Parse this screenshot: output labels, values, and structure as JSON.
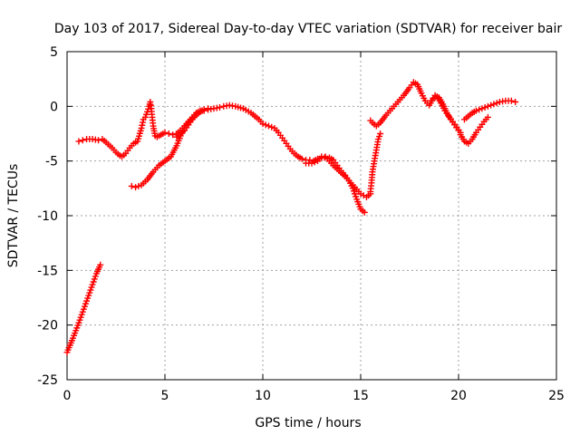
{
  "chart_data": {
    "type": "scatter",
    "title": "Day 103 of 2017, Sidereal Day-to-day VTEC variation (SDTVAR) for receiver bair",
    "xlabel": "GPS time / hours",
    "ylabel": "SDTVAR / TECUs",
    "xlim": [
      0,
      25
    ],
    "ylim": [
      -25,
      5
    ],
    "xticks": [
      "0",
      "5",
      "10",
      "15",
      "20",
      "25"
    ],
    "yticks": [
      "-25",
      "-20",
      "-15",
      "-10",
      "-5",
      "0",
      "5"
    ],
    "grid": true,
    "marker": "plus",
    "colors": {
      "series": "#ff0000",
      "grid": "#a0a0a0",
      "axis": "#000000"
    },
    "series": [
      {
        "segments": [
          {
            "x": [
              0.0,
              0.3,
              0.6,
              0.9,
              1.2,
              1.5,
              1.7
            ],
            "y": [
              -22.5,
              -21.2,
              -19.8,
              -18.3,
              -16.8,
              -15.3,
              -14.5
            ]
          },
          {
            "x": [
              0.6,
              0.8,
              1.0,
              1.3,
              1.6,
              1.8,
              2.0,
              2.3,
              2.5,
              2.7,
              2.8,
              3.0,
              3.2,
              3.4,
              3.6,
              3.8,
              3.9,
              4.0,
              4.1,
              4.2,
              4.25,
              4.3,
              4.4,
              4.5,
              4.6,
              4.8,
              5.0,
              5.2,
              5.4,
              5.6,
              5.8,
              6.0,
              6.2,
              6.4,
              6.6,
              6.8,
              7.0,
              7.2,
              7.5,
              7.8,
              8.0,
              8.3,
              8.6,
              9.0,
              9.4,
              9.8,
              10.0,
              10.3,
              10.6,
              10.8,
              11.0,
              11.2,
              11.4,
              11.6,
              11.8,
              12.0,
              12.2,
              12.4,
              12.6,
              12.8,
              13.0,
              13.2,
              13.4,
              13.6,
              13.8,
              14.0,
              14.2,
              14.4,
              14.6,
              14.8,
              15.0,
              15.2
            ],
            "y": [
              -3.2,
              -3.1,
              -3.0,
              -3.0,
              -3.1,
              -3.0,
              -3.3,
              -3.8,
              -4.2,
              -4.5,
              -4.6,
              -4.3,
              -3.8,
              -3.4,
              -3.2,
              -2.0,
              -1.2,
              -1.0,
              -0.5,
              0.0,
              0.4,
              -0.2,
              -1.8,
              -2.7,
              -2.8,
              -2.6,
              -2.4,
              -2.5,
              -2.6,
              -2.5,
              -2.2,
              -1.8,
              -1.4,
              -1.0,
              -0.6,
              -0.4,
              -0.4,
              -0.3,
              -0.2,
              -0.1,
              0.0,
              0.1,
              0.0,
              -0.2,
              -0.6,
              -1.2,
              -1.6,
              -1.8,
              -2.0,
              -2.4,
              -2.9,
              -3.4,
              -3.9,
              -4.3,
              -4.6,
              -4.8,
              -4.9,
              -4.9,
              -5.0,
              -4.8,
              -4.7,
              -4.6,
              -4.7,
              -4.9,
              -5.4,
              -5.9,
              -6.3,
              -6.8,
              -7.5,
              -8.5,
              -9.4,
              -9.7
            ]
          },
          {
            "x": [
              3.3,
              3.5,
              3.8,
              4.1,
              4.4,
              4.7,
              5.0,
              5.3,
              5.6,
              5.8,
              6.0,
              6.2,
              6.4,
              6.6,
              6.8,
              7.0,
              7.2
            ],
            "y": [
              -7.3,
              -7.4,
              -7.2,
              -6.7,
              -6.0,
              -5.4,
              -5.0,
              -4.6,
              -3.6,
              -2.7,
              -2.0,
              -1.5,
              -1.1,
              -0.8,
              -0.5,
              -0.3,
              -0.2
            ]
          },
          {
            "x": [
              5.6,
              5.8,
              6.0,
              6.2,
              6.4,
              6.6,
              6.8,
              7.0
            ],
            "y": [
              -2.8,
              -2.5,
              -2.2,
              -1.7,
              -1.2,
              -0.8,
              -0.5,
              -0.3
            ]
          },
          {
            "x": [
              12.2,
              12.5,
              12.8,
              13.0,
              13.3,
              13.6,
              13.9,
              14.2,
              14.5,
              14.8,
              15.0,
              15.3,
              15.5
            ],
            "y": [
              -5.2,
              -5.2,
              -5.0,
              -4.6,
              -4.8,
              -5.4,
              -5.9,
              -6.4,
              -7.0,
              -7.6,
              -8.0,
              -8.3,
              -8.0
            ]
          },
          {
            "x": [
              15.5,
              15.55,
              15.6,
              15.7,
              15.8,
              15.9,
              16.0
            ],
            "y": [
              -7.8,
              -7.0,
              -6.0,
              -5.0,
              -4.0,
              -3.0,
              -2.5
            ]
          },
          {
            "x": [
              15.5,
              15.6,
              15.8,
              16.0,
              16.3,
              16.6,
              16.9,
              17.2,
              17.5,
              17.7,
              17.9,
              18.1,
              18.3,
              18.5,
              18.7,
              18.9,
              19.1,
              19.3,
              19.5,
              19.7,
              19.9,
              20.1
            ],
            "y": [
              -1.3,
              -1.5,
              -1.8,
              -1.5,
              -0.8,
              -0.2,
              0.4,
              1.0,
              1.7,
              2.2,
              2.0,
              1.2,
              0.5,
              0.1,
              0.7,
              0.9,
              0.3,
              -0.4,
              -0.9,
              -1.4,
              -1.9,
              -2.4
            ]
          },
          {
            "x": [
              18.6,
              18.8,
              19.0,
              19.2,
              19.4,
              19.6,
              19.8,
              20.0
            ],
            "y": [
              0.5,
              1.0,
              0.8,
              0.2,
              -0.6,
              -1.2,
              -1.7,
              -2.2
            ]
          },
          {
            "x": [
              20.1,
              20.3,
              20.5,
              20.7,
              20.9,
              21.1,
              21.3,
              21.5
            ],
            "y": [
              -2.6,
              -3.2,
              -3.4,
              -3.0,
              -2.4,
              -1.9,
              -1.4,
              -1.0
            ]
          },
          {
            "x": [
              20.3,
              20.5,
              20.7,
              20.9,
              21.2,
              21.5,
              21.8,
              22.1,
              22.4,
              22.7,
              22.9
            ],
            "y": [
              -1.2,
              -0.9,
              -0.6,
              -0.4,
              -0.2,
              0.0,
              0.2,
              0.4,
              0.5,
              0.5,
              0.4
            ]
          }
        ]
      }
    ]
  }
}
